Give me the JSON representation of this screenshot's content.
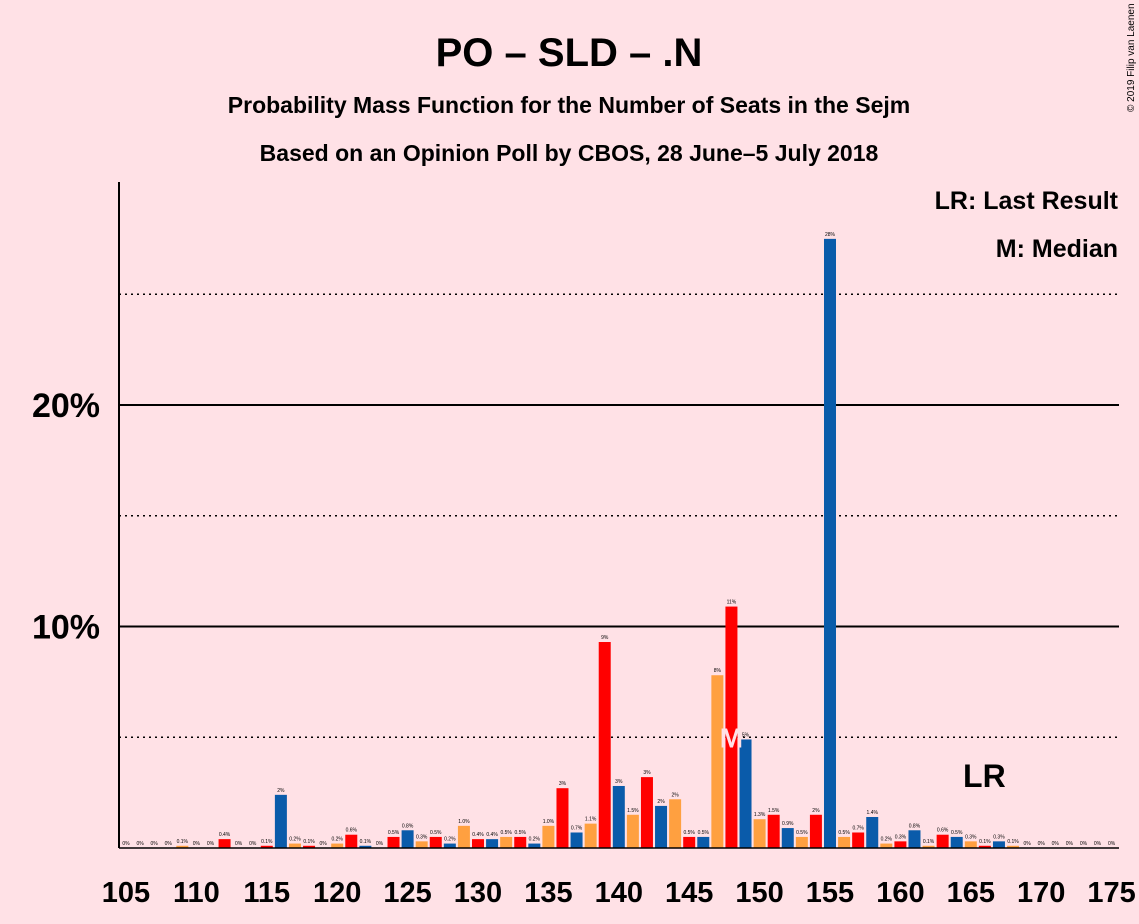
{
  "chart_data": {
    "type": "bar",
    "title": "PO – SLD – .N",
    "subtitle": "Probability Mass Function for the Number of Seats in the Sejm",
    "subtitle2": "Based on an Opinion Poll by CBOS, 28 June–5 July 2018",
    "copyright": "© 2019 Filip van Laenen",
    "legend": {
      "last_result": "LR: Last Result",
      "median": "M: Median"
    },
    "markers": {
      "last_result_label": "LR",
      "last_result_seat": 166,
      "median_label": "M",
      "median_seat": 148
    },
    "x_ticks": [
      105,
      110,
      115,
      120,
      125,
      130,
      135,
      140,
      145,
      150,
      155,
      160,
      165,
      170,
      175
    ],
    "y_ticks": [
      {
        "value": 10,
        "label": "10%"
      },
      {
        "value": 20,
        "label": "20%"
      }
    ],
    "ylim": [
      0,
      30
    ],
    "colors": {
      "red": "#FF0000",
      "orange": "#FFA040",
      "blue": "#0A5BAA",
      "background": "#FFE1E6"
    },
    "bars": [
      {
        "seat": 105,
        "value": 0,
        "label": "0%",
        "color": "red"
      },
      {
        "seat": 106,
        "value": 0,
        "label": "0%",
        "color": "orange"
      },
      {
        "seat": 107,
        "value": 0,
        "label": "0%",
        "color": "blue"
      },
      {
        "seat": 108,
        "value": 0,
        "label": "0%",
        "color": "red"
      },
      {
        "seat": 109,
        "value": 0.1,
        "label": "0.1%",
        "color": "orange"
      },
      {
        "seat": 110,
        "value": 0,
        "label": "0%",
        "color": "blue"
      },
      {
        "seat": 111,
        "value": 0,
        "label": "0%",
        "color": "red"
      },
      {
        "seat": 112,
        "value": 0.4,
        "label": "0.4%",
        "color": "red"
      },
      {
        "seat": 113,
        "value": 0,
        "label": "0%",
        "color": "orange"
      },
      {
        "seat": 114,
        "value": 0,
        "label": "0%",
        "color": "blue"
      },
      {
        "seat": 115,
        "value": 0.1,
        "label": "0.1%",
        "color": "red"
      },
      {
        "seat": 116,
        "value": 2.4,
        "label": "2%",
        "color": "blue"
      },
      {
        "seat": 117,
        "value": 0.2,
        "label": "0.2%",
        "color": "orange"
      },
      {
        "seat": 118,
        "value": 0.1,
        "label": "0.1%",
        "color": "red"
      },
      {
        "seat": 119,
        "value": 0,
        "label": "0%",
        "color": "blue"
      },
      {
        "seat": 120,
        "value": 0.2,
        "label": "0.2%",
        "color": "orange"
      },
      {
        "seat": 121,
        "value": 0.6,
        "label": "0.6%",
        "color": "red"
      },
      {
        "seat": 122,
        "value": 0.1,
        "label": "0.1%",
        "color": "blue"
      },
      {
        "seat": 123,
        "value": 0,
        "label": "0%",
        "color": "orange"
      },
      {
        "seat": 124,
        "value": 0.5,
        "label": "0.5%",
        "color": "red"
      },
      {
        "seat": 125,
        "value": 0.8,
        "label": "0.8%",
        "color": "blue"
      },
      {
        "seat": 126,
        "value": 0.3,
        "label": "0.3%",
        "color": "orange"
      },
      {
        "seat": 127,
        "value": 0.5,
        "label": "0.5%",
        "color": "red"
      },
      {
        "seat": 128,
        "value": 0.2,
        "label": "0.2%",
        "color": "blue"
      },
      {
        "seat": 129,
        "value": 1.0,
        "label": "1.0%",
        "color": "orange"
      },
      {
        "seat": 130,
        "value": 0.4,
        "label": "0.4%",
        "color": "red"
      },
      {
        "seat": 131,
        "value": 0.4,
        "label": "0.4%",
        "color": "blue"
      },
      {
        "seat": 132,
        "value": 0.5,
        "label": "0.5%",
        "color": "orange"
      },
      {
        "seat": 133,
        "value": 0.5,
        "label": "0.5%",
        "color": "red"
      },
      {
        "seat": 134,
        "value": 0.2,
        "label": "0.2%",
        "color": "blue"
      },
      {
        "seat": 135,
        "value": 1.0,
        "label": "1.0%",
        "color": "orange"
      },
      {
        "seat": 136,
        "value": 2.7,
        "label": "3%",
        "color": "red"
      },
      {
        "seat": 137,
        "value": 0.7,
        "label": "0.7%",
        "color": "blue"
      },
      {
        "seat": 138,
        "value": 1.1,
        "label": "1.1%",
        "color": "orange"
      },
      {
        "seat": 139,
        "value": 9.3,
        "label": "9%",
        "color": "red"
      },
      {
        "seat": 140,
        "value": 2.8,
        "label": "3%",
        "color": "blue"
      },
      {
        "seat": 141,
        "value": 1.5,
        "label": "1.5%",
        "color": "orange"
      },
      {
        "seat": 142,
        "value": 3.2,
        "label": "3%",
        "color": "red"
      },
      {
        "seat": 143,
        "value": 1.9,
        "label": "2%",
        "color": "blue"
      },
      {
        "seat": 144,
        "value": 2.2,
        "label": "2%",
        "color": "orange"
      },
      {
        "seat": 145,
        "value": 0.5,
        "label": "0.5%",
        "color": "red"
      },
      {
        "seat": 146,
        "value": 0.5,
        "label": "0.5%",
        "color": "blue"
      },
      {
        "seat": 147,
        "value": 7.8,
        "label": "8%",
        "color": "orange"
      },
      {
        "seat": 148,
        "value": 10.9,
        "label": "11%",
        "color": "red"
      },
      {
        "seat": 149,
        "value": 4.9,
        "label": "5%",
        "color": "blue"
      },
      {
        "seat": 150,
        "value": 1.3,
        "label": "1.3%",
        "color": "orange"
      },
      {
        "seat": 151,
        "value": 1.5,
        "label": "1.5%",
        "color": "red"
      },
      {
        "seat": 152,
        "value": 0.9,
        "label": "0.9%",
        "color": "blue"
      },
      {
        "seat": 153,
        "value": 0.5,
        "label": "0.5%",
        "color": "orange"
      },
      {
        "seat": 154,
        "value": 1.5,
        "label": "2%",
        "color": "red"
      },
      {
        "seat": 155,
        "value": 27.5,
        "label": "28%",
        "color": "blue"
      },
      {
        "seat": 156,
        "value": 0.5,
        "label": "0.5%",
        "color": "orange"
      },
      {
        "seat": 157,
        "value": 0.7,
        "label": "0.7%",
        "color": "red"
      },
      {
        "seat": 158,
        "value": 1.4,
        "label": "1.4%",
        "color": "blue"
      },
      {
        "seat": 159,
        "value": 0.2,
        "label": "0.2%",
        "color": "orange"
      },
      {
        "seat": 160,
        "value": 0.3,
        "label": "0.3%",
        "color": "red"
      },
      {
        "seat": 161,
        "value": 0.8,
        "label": "0.8%",
        "color": "blue"
      },
      {
        "seat": 162,
        "value": 0.1,
        "label": "0.1%",
        "color": "orange"
      },
      {
        "seat": 163,
        "value": 0.6,
        "label": "0.6%",
        "color": "red"
      },
      {
        "seat": 164,
        "value": 0.5,
        "label": "0.5%",
        "color": "blue"
      },
      {
        "seat": 165,
        "value": 0.3,
        "label": "0.3%",
        "color": "orange"
      },
      {
        "seat": 166,
        "value": 0.1,
        "label": "0.1%",
        "color": "red"
      },
      {
        "seat": 167,
        "value": 0.3,
        "label": "0.3%",
        "color": "blue"
      },
      {
        "seat": 168,
        "value": 0.1,
        "label": "0.1%",
        "color": "orange"
      },
      {
        "seat": 169,
        "value": 0,
        "label": "0%",
        "color": "red"
      },
      {
        "seat": 170,
        "value": 0,
        "label": "0%",
        "color": "blue"
      },
      {
        "seat": 171,
        "value": 0,
        "label": "0%",
        "color": "orange"
      },
      {
        "seat": 172,
        "value": 0,
        "label": "0%",
        "color": "red"
      },
      {
        "seat": 173,
        "value": 0,
        "label": "0%",
        "color": "blue"
      },
      {
        "seat": 174,
        "value": 0,
        "label": "0%",
        "color": "orange"
      },
      {
        "seat": 175,
        "value": 0,
        "label": "0%",
        "color": "red"
      }
    ]
  }
}
